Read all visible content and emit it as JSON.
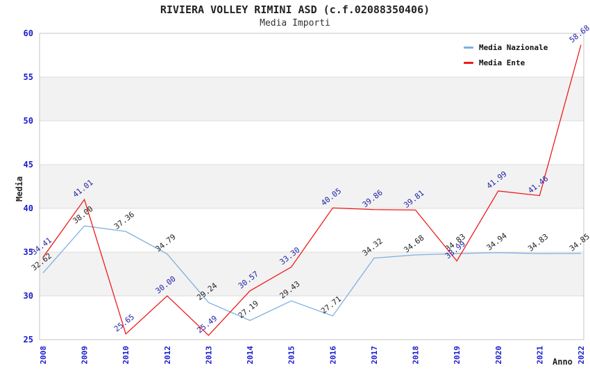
{
  "chart_data": {
    "type": "line",
    "title": "RIVIERA VOLLEY RIMINI ASD (c.f.02088350406)",
    "subtitle": "Media Importi",
    "xlabel": "Anno",
    "ylabel": "Media",
    "ylim": [
      25,
      60
    ],
    "yticks": [
      25,
      30,
      35,
      40,
      45,
      50,
      55,
      60
    ],
    "categories": [
      "2008",
      "2009",
      "2010",
      "2012",
      "2013",
      "2014",
      "2015",
      "2016",
      "2017",
      "2018",
      "2019",
      "2020",
      "2021",
      "2022"
    ],
    "series": [
      {
        "name": "Media Nazionale",
        "color": "#7EB0E0",
        "label_color": "#222222",
        "values": [
          32.62,
          38.0,
          37.36,
          34.79,
          29.24,
          27.19,
          29.43,
          27.71,
          34.32,
          34.68,
          34.83,
          34.94,
          34.83,
          34.85
        ]
      },
      {
        "name": "Media Ente",
        "color": "#EE1A1A",
        "label_color": "#2323A8",
        "values": [
          34.41,
          41.01,
          25.65,
          30.0,
          25.49,
          30.57,
          33.3,
          40.05,
          39.86,
          39.81,
          33.99,
          41.99,
          41.46,
          58.68
        ]
      }
    ],
    "legend_position": "top-right",
    "grid": "horizontal-bands",
    "colors": {
      "tick_label": "#1A1ACD",
      "band_fill": "#F2F2F2",
      "gridline": "#DCDCDC",
      "plot_border": "#C4C4C4"
    }
  }
}
